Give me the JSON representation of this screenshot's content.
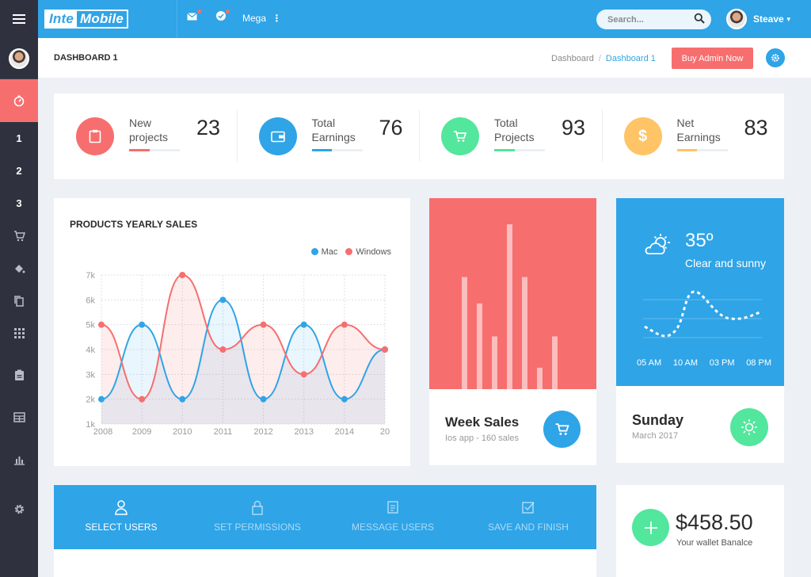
{
  "app": {
    "logo_part1": "Inte",
    "logo_part2": "Mobile"
  },
  "topbar": {
    "mega_label": "Mega",
    "search_placeholder": "Search...",
    "user_name": "Steave"
  },
  "sidebar": {
    "items": [
      {
        "label": "1"
      },
      {
        "label": "2"
      },
      {
        "label": "3"
      }
    ]
  },
  "header": {
    "title": "DASHBOARD 1",
    "breadcrumb_home": "Dashboard",
    "breadcrumb_separator": "/",
    "breadcrumb_current": "Dashboard 1",
    "buy_button": "Buy Admin Now"
  },
  "stats": [
    {
      "label": "New projects",
      "value": "23",
      "color": "#f76e6e",
      "progress": 0.4
    },
    {
      "label": "Total Earnings",
      "value": "76",
      "color": "#2fa4e7",
      "progress": 0.4
    },
    {
      "label": "Total Projects",
      "value": "93",
      "color": "#53e69d",
      "progress": 0.4
    },
    {
      "label": "Net Earnings",
      "value": "83",
      "color": "#fec465",
      "progress": 0.4
    }
  ],
  "chart_data": {
    "type": "area",
    "title": "PRODUCTS YEARLY SALES",
    "categories": [
      "2008",
      "2009",
      "2010",
      "2011",
      "2012",
      "2013",
      "2014",
      "20"
    ],
    "y_ticks": [
      "7k",
      "6k",
      "5k",
      "4k",
      "3k",
      "2k",
      "1k"
    ],
    "ylim": [
      1,
      7
    ],
    "series": [
      {
        "name": "Mac",
        "color": "#2fa4e7",
        "values": [
          2,
          5,
          2,
          6,
          2,
          5,
          2,
          4
        ]
      },
      {
        "name": "Windows",
        "color": "#f76e6e",
        "values": [
          5,
          2,
          7,
          4,
          5,
          3,
          5,
          4
        ]
      }
    ],
    "legend_position": "top-right",
    "grid": true
  },
  "week_sales": {
    "title": "Week Sales",
    "subtitle": "Ios app - 160 sales",
    "bars": [
      0.68,
      0.52,
      0.32,
      1.0,
      0.68,
      0.13,
      0.32
    ]
  },
  "weather": {
    "temperature": "35º",
    "condition": "Clear and sunny",
    "times": [
      "05 AM",
      "10 AM",
      "03 PM",
      "08 PM"
    ],
    "day": "Sunday",
    "date": "March 2017"
  },
  "wizard": {
    "steps": [
      {
        "label": "SELECT USERS",
        "active": true
      },
      {
        "label": "SET PERMISSIONS",
        "active": false
      },
      {
        "label": "MESSAGE USERS",
        "active": false
      },
      {
        "label": "SAVE AND FINISH",
        "active": false
      }
    ]
  },
  "wallet": {
    "amount": "$458.50",
    "label": "Your wallet Banalce"
  }
}
